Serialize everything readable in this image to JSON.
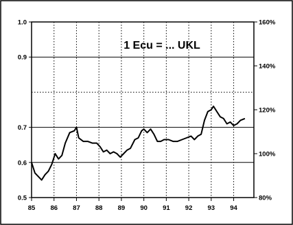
{
  "chart_data": {
    "type": "line",
    "title": "1 Ecu = ... UKL",
    "xlabel": "",
    "ylabel": "",
    "xlim": [
      85,
      94.9
    ],
    "ylim": [
      0.5,
      1.0
    ],
    "y2lim": [
      80,
      160
    ],
    "x_ticks": [
      "85",
      "86",
      "87",
      "88",
      "89",
      "90",
      "91",
      "92",
      "93",
      "94"
    ],
    "y_ticks": [
      "1.0",
      "0.9",
      "0.7",
      "0.6",
      "0.5"
    ],
    "y_tick_values": [
      1.0,
      0.9,
      0.7,
      0.6,
      0.5
    ],
    "y2_ticks": [
      "160%",
      "140%",
      "120%",
      "100%",
      "80%"
    ],
    "y2_tick_values": [
      160,
      140,
      120,
      100,
      80
    ],
    "grid": {
      "major_y_dotted": true,
      "dotted_y": [
        0.8
      ],
      "x_dotted": true
    },
    "series": [
      {
        "x": [
          85.0,
          85.15,
          85.3,
          85.45,
          85.6,
          85.75,
          85.9,
          86.05,
          86.2,
          86.35,
          86.5,
          86.7,
          86.9,
          87.0,
          87.1,
          87.3,
          87.5,
          87.7,
          87.9,
          88.05,
          88.2,
          88.35,
          88.5,
          88.65,
          88.8,
          88.95,
          89.1,
          89.25,
          89.4,
          89.6,
          89.75,
          89.9,
          90.0,
          90.15,
          90.3,
          90.45,
          90.6,
          90.75,
          90.9,
          91.1,
          91.3,
          91.5,
          91.7,
          91.9,
          92.1,
          92.25,
          92.4,
          92.55,
          92.7,
          92.85,
          93.0,
          93.1,
          93.25,
          93.4,
          93.55,
          93.7,
          93.85,
          94.0,
          94.15,
          94.3,
          94.5
        ],
        "values": [
          0.6,
          0.57,
          0.56,
          0.55,
          0.565,
          0.575,
          0.595,
          0.625,
          0.61,
          0.62,
          0.655,
          0.685,
          0.69,
          0.7,
          0.67,
          0.66,
          0.66,
          0.655,
          0.655,
          0.645,
          0.63,
          0.635,
          0.625,
          0.63,
          0.625,
          0.615,
          0.625,
          0.635,
          0.64,
          0.665,
          0.67,
          0.69,
          0.695,
          0.685,
          0.695,
          0.68,
          0.66,
          0.66,
          0.665,
          0.665,
          0.66,
          0.66,
          0.665,
          0.67,
          0.675,
          0.665,
          0.675,
          0.68,
          0.72,
          0.745,
          0.75,
          0.76,
          0.745,
          0.73,
          0.725,
          0.71,
          0.715,
          0.705,
          0.71,
          0.72,
          0.725
        ]
      }
    ]
  }
}
